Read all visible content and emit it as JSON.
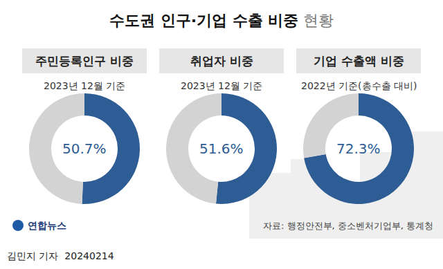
{
  "title": "수도권 인구·기업 수출 비중",
  "title_suffix": "현황",
  "source": "자료: 행정안전부, 중소벤처기업부, 통계청",
  "logo": "연합뉴스",
  "byline": "김민지 기자  20240214",
  "chart_data": [
    {
      "type": "pie",
      "title": "주민등록인구 비중",
      "subtitle": "2023년 12월 기준",
      "values": [
        50.7,
        49.3
      ],
      "value_labels": [
        "50.7%",
        null
      ],
      "colors": [
        "#2e5c94",
        "#d3d3d3"
      ]
    },
    {
      "type": "pie",
      "title": "취업자 비중",
      "subtitle": "2023년 12월 기준",
      "values": [
        51.6,
        48.4
      ],
      "value_labels": [
        "51.6%",
        null
      ],
      "colors": [
        "#2e5c94",
        "#d3d3d3"
      ]
    },
    {
      "type": "pie",
      "title": "기업 수출액 비중",
      "subtitle": "2022년 기준(총수출 대비)",
      "values": [
        72.3,
        27.7
      ],
      "value_labels": [
        "72.3%",
        null
      ],
      "colors": [
        "#2e5c94",
        "#d3d3d3"
      ]
    }
  ]
}
